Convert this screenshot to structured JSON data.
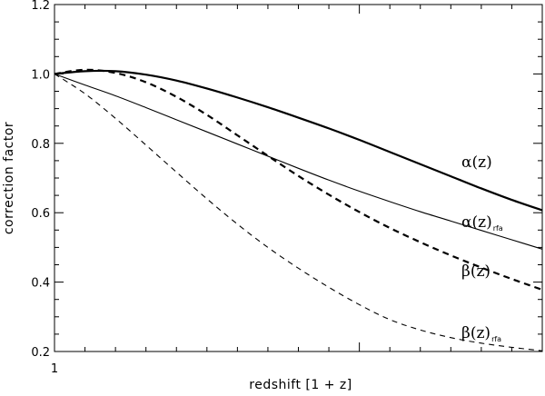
{
  "chart_data": {
    "type": "line",
    "title": "",
    "xlabel": "redshift [1 + z]",
    "ylabel": "correction factor",
    "x_tick_labels": [
      "1"
    ],
    "xlim": [
      1,
      2.6
    ],
    "ylim": [
      0.2,
      1.2
    ],
    "y_ticks": [
      0.2,
      0.4,
      0.6,
      0.8,
      1.0,
      1.2
    ],
    "y_tick_labels": [
      "0.2",
      "0.4",
      "0.6",
      "0.8",
      "1.0",
      "1.2"
    ],
    "grid": false,
    "series": [
      {
        "name": "α(z)",
        "label_main": "α(z)",
        "label_sub": "",
        "style": "solid-thick",
        "x": [
          1.0,
          1.1,
          1.2,
          1.3,
          1.4,
          1.5,
          1.6,
          1.7,
          1.8,
          1.9,
          2.0,
          2.1,
          2.2,
          2.3,
          2.4,
          2.5,
          2.6
        ],
        "y": [
          1.0,
          1.008,
          1.008,
          0.998,
          0.981,
          0.958,
          0.932,
          0.904,
          0.874,
          0.843,
          0.81,
          0.775,
          0.74,
          0.705,
          0.67,
          0.637,
          0.607
        ]
      },
      {
        "name": "α(z)rfa",
        "label_main": "α(z)",
        "label_sub": "rfa",
        "style": "solid-thin",
        "x": [
          1.0,
          1.1,
          1.2,
          1.3,
          1.4,
          1.5,
          1.6,
          1.7,
          1.8,
          1.9,
          2.0,
          2.1,
          2.2,
          2.3,
          2.4,
          2.5,
          2.6
        ],
        "y": [
          1.0,
          0.968,
          0.937,
          0.903,
          0.868,
          0.833,
          0.798,
          0.763,
          0.728,
          0.694,
          0.662,
          0.632,
          0.603,
          0.576,
          0.549,
          0.522,
          0.495
        ]
      },
      {
        "name": "β(z)",
        "label_main": "β(z)",
        "label_sub": "",
        "style": "dashed-thick",
        "x": [
          1.0,
          1.1,
          1.2,
          1.3,
          1.4,
          1.5,
          1.6,
          1.7,
          1.8,
          1.9,
          2.0,
          2.1,
          2.2,
          2.3,
          2.4,
          2.5,
          2.6
        ],
        "y": [
          1.0,
          1.012,
          1.003,
          0.976,
          0.934,
          0.882,
          0.823,
          0.764,
          0.706,
          0.652,
          0.602,
          0.556,
          0.515,
          0.477,
          0.442,
          0.409,
          0.378
        ]
      },
      {
        "name": "β(z)rfa",
        "label_main": "β(z)",
        "label_sub": "rfa",
        "style": "dashed-thin",
        "x": [
          1.0,
          1.1,
          1.2,
          1.3,
          1.4,
          1.5,
          1.6,
          1.7,
          1.8,
          1.9,
          2.0,
          2.1,
          2.2,
          2.3,
          2.4,
          2.5,
          2.6
        ],
        "y": [
          1.0,
          0.943,
          0.872,
          0.795,
          0.717,
          0.64,
          0.567,
          0.5,
          0.44,
          0.385,
          0.335,
          0.292,
          0.262,
          0.24,
          0.224,
          0.212,
          0.202
        ]
      }
    ]
  }
}
